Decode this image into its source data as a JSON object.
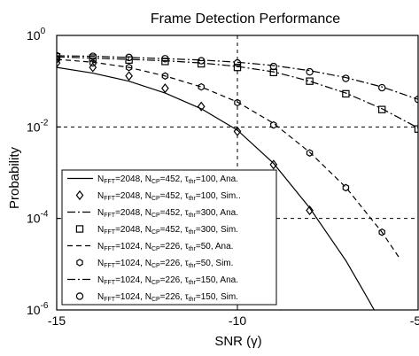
{
  "chart_data": {
    "type": "line",
    "title": "Frame Detection Performance",
    "xlabel": "SNR (γ)",
    "ylabel": "Probability",
    "xlim": [
      -15,
      -5
    ],
    "ylim": [
      1e-06,
      1
    ],
    "yscale": "log",
    "grid": true,
    "grid_style": "dashed",
    "legend_position": "bottom-left",
    "xticks": [
      {
        "value": -15,
        "label": "-15"
      },
      {
        "value": -10,
        "label": "-10"
      },
      {
        "value": -5,
        "label": "-5"
      }
    ],
    "yticks": [
      {
        "value": 1,
        "base": "10",
        "exp": "0"
      },
      {
        "value": 0.01,
        "base": "10",
        "exp": "-2"
      },
      {
        "value": 0.0001,
        "base": "10",
        "exp": "-4"
      },
      {
        "value": 1e-06,
        "base": "10",
        "exp": "-6"
      }
    ],
    "series": [
      {
        "legend": [
          {
            "t": "N"
          },
          {
            "t": "FFT",
            "sub": true
          },
          {
            "t": "=2048, N"
          },
          {
            "t": "CP",
            "sub": true
          },
          {
            "t": "=452, τ"
          },
          {
            "t": "thr",
            "sub": true
          },
          {
            "t": "=100, Ana."
          }
        ],
        "line": "solid",
        "marker": "none",
        "x": [
          -15,
          -14,
          -13,
          -12,
          -11,
          -10,
          -9,
          -8,
          -7,
          -6.5,
          -6
        ],
        "y": [
          0.2,
          0.15,
          0.1,
          0.055,
          0.025,
          0.0085,
          0.0016,
          0.00017,
          1.2e-05,
          2.5e-06,
          5e-07
        ]
      },
      {
        "legend": [
          {
            "t": "N"
          },
          {
            "t": "FFT",
            "sub": true
          },
          {
            "t": "=2048, N"
          },
          {
            "t": "CP",
            "sub": true
          },
          {
            "t": "=452, τ"
          },
          {
            "t": "thr",
            "sub": true
          },
          {
            "t": "=100, Sim.."
          }
        ],
        "line": "none",
        "marker": "diamond",
        "x": [
          -15,
          -14,
          -13,
          -12,
          -11,
          -10,
          -9,
          -8
        ],
        "y": [
          0.25,
          0.2,
          0.13,
          0.07,
          0.028,
          0.008,
          0.0015,
          0.00015
        ]
      },
      {
        "legend": [
          {
            "t": "N"
          },
          {
            "t": "FFT",
            "sub": true
          },
          {
            "t": "=2048, N"
          },
          {
            "t": "CP",
            "sub": true
          },
          {
            "t": "=452, τ"
          },
          {
            "t": "thr",
            "sub": true
          },
          {
            "t": "=300, Ana."
          }
        ],
        "line": "dashdot",
        "marker": "none",
        "x": [
          -15,
          -14,
          -13,
          -12,
          -11,
          -10,
          -9,
          -8,
          -7,
          -6,
          -5
        ],
        "y": [
          0.34,
          0.32,
          0.3,
          0.28,
          0.25,
          0.21,
          0.16,
          0.1,
          0.055,
          0.025,
          0.0095
        ]
      },
      {
        "legend": [
          {
            "t": "N"
          },
          {
            "t": "FFT",
            "sub": true
          },
          {
            "t": "=2048, N"
          },
          {
            "t": "CP",
            "sub": true
          },
          {
            "t": "=452, τ"
          },
          {
            "t": "thr",
            "sub": true
          },
          {
            "t": "=300, Sim."
          }
        ],
        "line": "none",
        "marker": "square",
        "x": [
          -15,
          -14,
          -13,
          -12,
          -11,
          -10,
          -9,
          -8,
          -7,
          -6,
          -5
        ],
        "y": [
          0.34,
          0.32,
          0.29,
          0.27,
          0.24,
          0.2,
          0.155,
          0.1,
          0.053,
          0.024,
          0.009
        ]
      },
      {
        "legend": [
          {
            "t": "N"
          },
          {
            "t": "FFT",
            "sub": true
          },
          {
            "t": "=1024, N"
          },
          {
            "t": "CP",
            "sub": true
          },
          {
            "t": "=226, τ"
          },
          {
            "t": "thr",
            "sub": true
          },
          {
            "t": "=50, Ana."
          }
        ],
        "line": "dashed",
        "marker": "none",
        "x": [
          -15,
          -14,
          -13,
          -12,
          -11,
          -10,
          -9,
          -8,
          -7,
          -6,
          -5.5
        ],
        "y": [
          0.3,
          0.26,
          0.2,
          0.13,
          0.075,
          0.035,
          0.012,
          0.0028,
          0.00048,
          5e-05,
          1.3e-05
        ]
      },
      {
        "legend": [
          {
            "t": "N"
          },
          {
            "t": "FFT",
            "sub": true
          },
          {
            "t": "=1024, N"
          },
          {
            "t": "CP",
            "sub": true
          },
          {
            "t": "=226, τ"
          },
          {
            "t": "thr",
            "sub": true
          },
          {
            "t": "=50, Sim."
          }
        ],
        "line": "none",
        "marker": "hexagon",
        "x": [
          -15,
          -14,
          -13,
          -12,
          -11,
          -10,
          -9,
          -8,
          -7,
          -6
        ],
        "y": [
          0.3,
          0.25,
          0.2,
          0.13,
          0.075,
          0.034,
          0.011,
          0.0027,
          0.00047,
          5e-05
        ]
      },
      {
        "legend": [
          {
            "t": "N"
          },
          {
            "t": "FFT",
            "sub": true
          },
          {
            "t": "=1024, N"
          },
          {
            "t": "CP",
            "sub": true
          },
          {
            "t": "=226, τ"
          },
          {
            "t": "thr",
            "sub": true
          },
          {
            "t": "=150, Ana."
          }
        ],
        "line": "dashdot",
        "marker": "none",
        "x": [
          -15,
          -14,
          -13,
          -12,
          -11,
          -10,
          -9,
          -8,
          -7,
          -6,
          -5
        ],
        "y": [
          0.36,
          0.35,
          0.33,
          0.31,
          0.29,
          0.26,
          0.22,
          0.17,
          0.12,
          0.075,
          0.04
        ]
      },
      {
        "legend": [
          {
            "t": "N"
          },
          {
            "t": "FFT",
            "sub": true
          },
          {
            "t": "=1024, N"
          },
          {
            "t": "CP",
            "sub": true
          },
          {
            "t": "=226, τ"
          },
          {
            "t": "thr",
            "sub": true
          },
          {
            "t": "=150, Sim."
          }
        ],
        "line": "none",
        "marker": "circle",
        "x": [
          -15,
          -14,
          -13,
          -12,
          -11,
          -10,
          -9,
          -8,
          -7,
          -6,
          -5
        ],
        "y": [
          0.36,
          0.35,
          0.33,
          0.31,
          0.28,
          0.25,
          0.21,
          0.16,
          0.115,
          0.072,
          0.04
        ]
      }
    ]
  }
}
